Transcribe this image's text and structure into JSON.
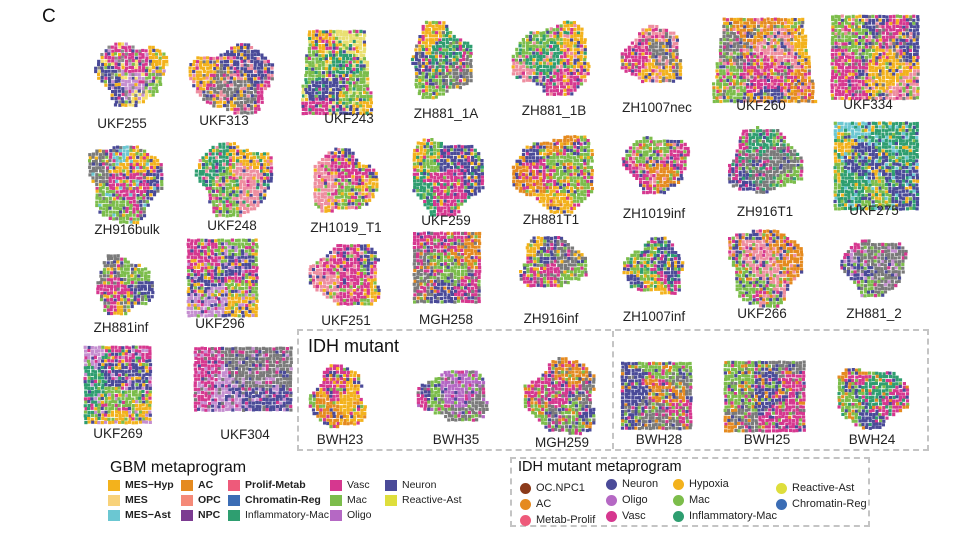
{
  "panel_letter": "C",
  "idh_section_title": "IDH mutant",
  "samples": [
    {
      "label": "UKF255",
      "palette": [
        "#f3b21c",
        "#4a4a98",
        "#d6378f",
        "#7cbd4b",
        "#c58ed0",
        "#f5e070",
        "#8a8a8a"
      ]
    },
    {
      "label": "UKF313",
      "palette": [
        "#f3b21c",
        "#7a7a7a",
        "#4a4a98",
        "#d6378f",
        "#ee8ea0"
      ]
    },
    {
      "label": "UKF243",
      "palette": [
        "#f3b21c",
        "#4a4a98",
        "#7cbd4b",
        "#d6378f",
        "#2e9e70",
        "#e9e072"
      ]
    },
    {
      "label": "ZH881_1A",
      "palette": [
        "#7a7a7a",
        "#7cbd4b",
        "#4a4a98",
        "#d6378f",
        "#f3b21c",
        "#2e9e70"
      ]
    },
    {
      "label": "ZH881_1B",
      "palette": [
        "#d6378f",
        "#f3b21c",
        "#4a4a98",
        "#7cbd4b",
        "#ee8ea0",
        "#2e9e70"
      ]
    },
    {
      "label": "ZH1007nec",
      "palette": [
        "#f3b21c",
        "#ee8ea0",
        "#d6378f",
        "#7a7a7a",
        "#4a4a98"
      ]
    },
    {
      "label": "UKF260",
      "palette": [
        "#e58a1f",
        "#d6378f",
        "#4a4a98",
        "#7cbd4b",
        "#f3b21c",
        "#ee8ea0",
        "#7a7a7a"
      ]
    },
    {
      "label": "UKF334",
      "palette": [
        "#4a4a98",
        "#f3b21c",
        "#d6378f",
        "#7a7a7a",
        "#7cbd4b",
        "#ee8ea0"
      ]
    },
    {
      "label": "ZH916bulk",
      "palette": [
        "#4a4a98",
        "#d6378f",
        "#7cbd4b",
        "#f3b21c",
        "#6bc7d2",
        "#7a7a7a"
      ]
    },
    {
      "label": "UKF248",
      "palette": [
        "#f3b21c",
        "#d6378f",
        "#4a4a98",
        "#7cbd4b",
        "#2e9e70",
        "#ee8ea0"
      ]
    },
    {
      "label": "ZH1019_T1",
      "palette": [
        "#f3b21c",
        "#4a4a98",
        "#d6378f",
        "#ee8ea0",
        "#7cbd4b"
      ]
    },
    {
      "label": "UKF259",
      "palette": [
        "#4a4a98",
        "#7cbd4b",
        "#f3b21c",
        "#d6378f",
        "#2e9e70"
      ]
    },
    {
      "label": "ZH881T1",
      "palette": [
        "#e58a1f",
        "#4a4a98",
        "#d6378f",
        "#7cbd4b",
        "#f3b21c"
      ]
    },
    {
      "label": "ZH1019inf",
      "palette": [
        "#d6378f",
        "#4a4a98",
        "#7cbd4b",
        "#e58a1f",
        "#ee8ea0"
      ]
    },
    {
      "label": "ZH916T1",
      "palette": [
        "#d6378f",
        "#7cbd4b",
        "#2e9e70",
        "#7a7a7a",
        "#4a4a98"
      ]
    },
    {
      "label": "UKF275",
      "palette": [
        "#4a4a98",
        "#7cbd4b",
        "#2e9e70",
        "#f3b21c",
        "#6bc7d2"
      ]
    },
    {
      "label": "ZH881inf",
      "palette": [
        "#7a7a7a",
        "#4a4a98",
        "#d6378f",
        "#7cbd4b",
        "#f3b21c"
      ]
    },
    {
      "label": "UKF296",
      "palette": [
        "#7cbd4b",
        "#4a4a98",
        "#d6378f",
        "#f3b21c",
        "#c58ed0"
      ]
    },
    {
      "label": "UKF251",
      "palette": [
        "#d6378f",
        "#7cbd4b",
        "#4a4a98",
        "#f3b21c",
        "#ee8ea0"
      ]
    },
    {
      "label": "MGH258",
      "palette": [
        "#d6378f",
        "#7cbd4b",
        "#4a4a98",
        "#7a7a7a",
        "#e58a1f"
      ]
    },
    {
      "label": "ZH916inf",
      "palette": [
        "#7a7a7a",
        "#4a4a98",
        "#7cbd4b",
        "#d6378f",
        "#f3b21c"
      ]
    },
    {
      "label": "ZH1007inf",
      "palette": [
        "#d6378f",
        "#4a4a98",
        "#7cbd4b",
        "#f3b21c",
        "#2e9e70"
      ]
    },
    {
      "label": "UKF266",
      "palette": [
        "#ee8ea0",
        "#4a4a98",
        "#e58a1f",
        "#d6378f",
        "#7cbd4b"
      ]
    },
    {
      "label": "ZH881_2",
      "palette": [
        "#d6378f",
        "#7a7a7a",
        "#4a4a98",
        "#c58ed0",
        "#7cbd4b"
      ]
    },
    {
      "label": "UKF269",
      "palette": [
        "#7cbd4b",
        "#4a4a98",
        "#c58ed0",
        "#d6378f",
        "#f3b21c",
        "#2e9e70"
      ]
    },
    {
      "label": "UKF304",
      "palette": [
        "#4a4a98",
        "#7a7a7a",
        "#c58ed0",
        "#d6378f"
      ]
    },
    {
      "label": "BWH23",
      "palette": [
        "#d6378f",
        "#e58a1f",
        "#7cbd4b",
        "#4a4a98",
        "#f3b21c"
      ]
    },
    {
      "label": "BWH35",
      "palette": [
        "#7a7a7a",
        "#d6378f",
        "#7cbd4b",
        "#4a4a98",
        "#b568c4"
      ]
    },
    {
      "label": "MGH259",
      "palette": [
        "#7a7a7a",
        "#d6378f",
        "#7cbd4b",
        "#4a4a98",
        "#e58a1f"
      ]
    },
    {
      "label": "BWH28",
      "palette": [
        "#7a7a7a",
        "#d6378f",
        "#e58a1f",
        "#4a4a98",
        "#7cbd4b"
      ]
    },
    {
      "label": "BWH25",
      "palette": [
        "#7a7a7a",
        "#d6378f",
        "#e58a1f",
        "#7cbd4b",
        "#4a4a98"
      ]
    },
    {
      "label": "BWH24",
      "palette": [
        "#d6378f",
        "#4a4a98",
        "#e58a1f",
        "#7cbd4b",
        "#2e9e70"
      ]
    }
  ],
  "gbm_legend": {
    "title": "GBM metaprogram",
    "items": [
      {
        "label": "MES−Hyp",
        "color": "#f3b21c",
        "bold": true
      },
      {
        "label": "MES",
        "color": "#f8d27a",
        "bold": true
      },
      {
        "label": "MES−Ast",
        "color": "#6bc7d2",
        "bold": true
      },
      {
        "label": "AC",
        "color": "#e58a1f",
        "bold": true
      },
      {
        "label": "OPC",
        "color": "#f58a78",
        "bold": true
      },
      {
        "label": "NPC",
        "color": "#7c3b91",
        "bold": true
      },
      {
        "label": "Prolif-Metab",
        "color": "#ee5a7a",
        "bold": true
      },
      {
        "label": "Chromatin-Reg",
        "color": "#3b6db5",
        "bold": true
      },
      {
        "label": "Inflammatory-Mac",
        "color": "#2e9e70",
        "bold": false
      },
      {
        "label": "Vasc",
        "color": "#d6378f",
        "bold": false
      },
      {
        "label": "Mac",
        "color": "#7cbd4b",
        "bold": false
      },
      {
        "label": "Oligo",
        "color": "#b568c4",
        "bold": false
      },
      {
        "label": "Neuron",
        "color": "#4a4a98",
        "bold": false
      },
      {
        "label": "Reactive-Ast",
        "color": "#dede3c",
        "bold": false
      }
    ]
  },
  "idh_legend": {
    "title": "IDH mutant metaprogram",
    "items": [
      {
        "label": "OC.NPC1",
        "color": "#8b3a1a"
      },
      {
        "label": "AC",
        "color": "#e58a1f"
      },
      {
        "label": "Metab-Prolif",
        "color": "#ee5a7a"
      },
      {
        "label": "Neuron",
        "color": "#4a4a98"
      },
      {
        "label": "Oligo",
        "color": "#b568c4"
      },
      {
        "label": "Vasc",
        "color": "#d6378f"
      },
      {
        "label": "Hypoxia",
        "color": "#f3b21c"
      },
      {
        "label": "Mac",
        "color": "#7cbd4b"
      },
      {
        "label": "Inflammatory-Mac",
        "color": "#2e9e70"
      },
      {
        "label": "Reactive-Ast",
        "color": "#dede3c"
      },
      {
        "label": "Chromatin-Reg",
        "color": "#3b6db5"
      }
    ]
  }
}
